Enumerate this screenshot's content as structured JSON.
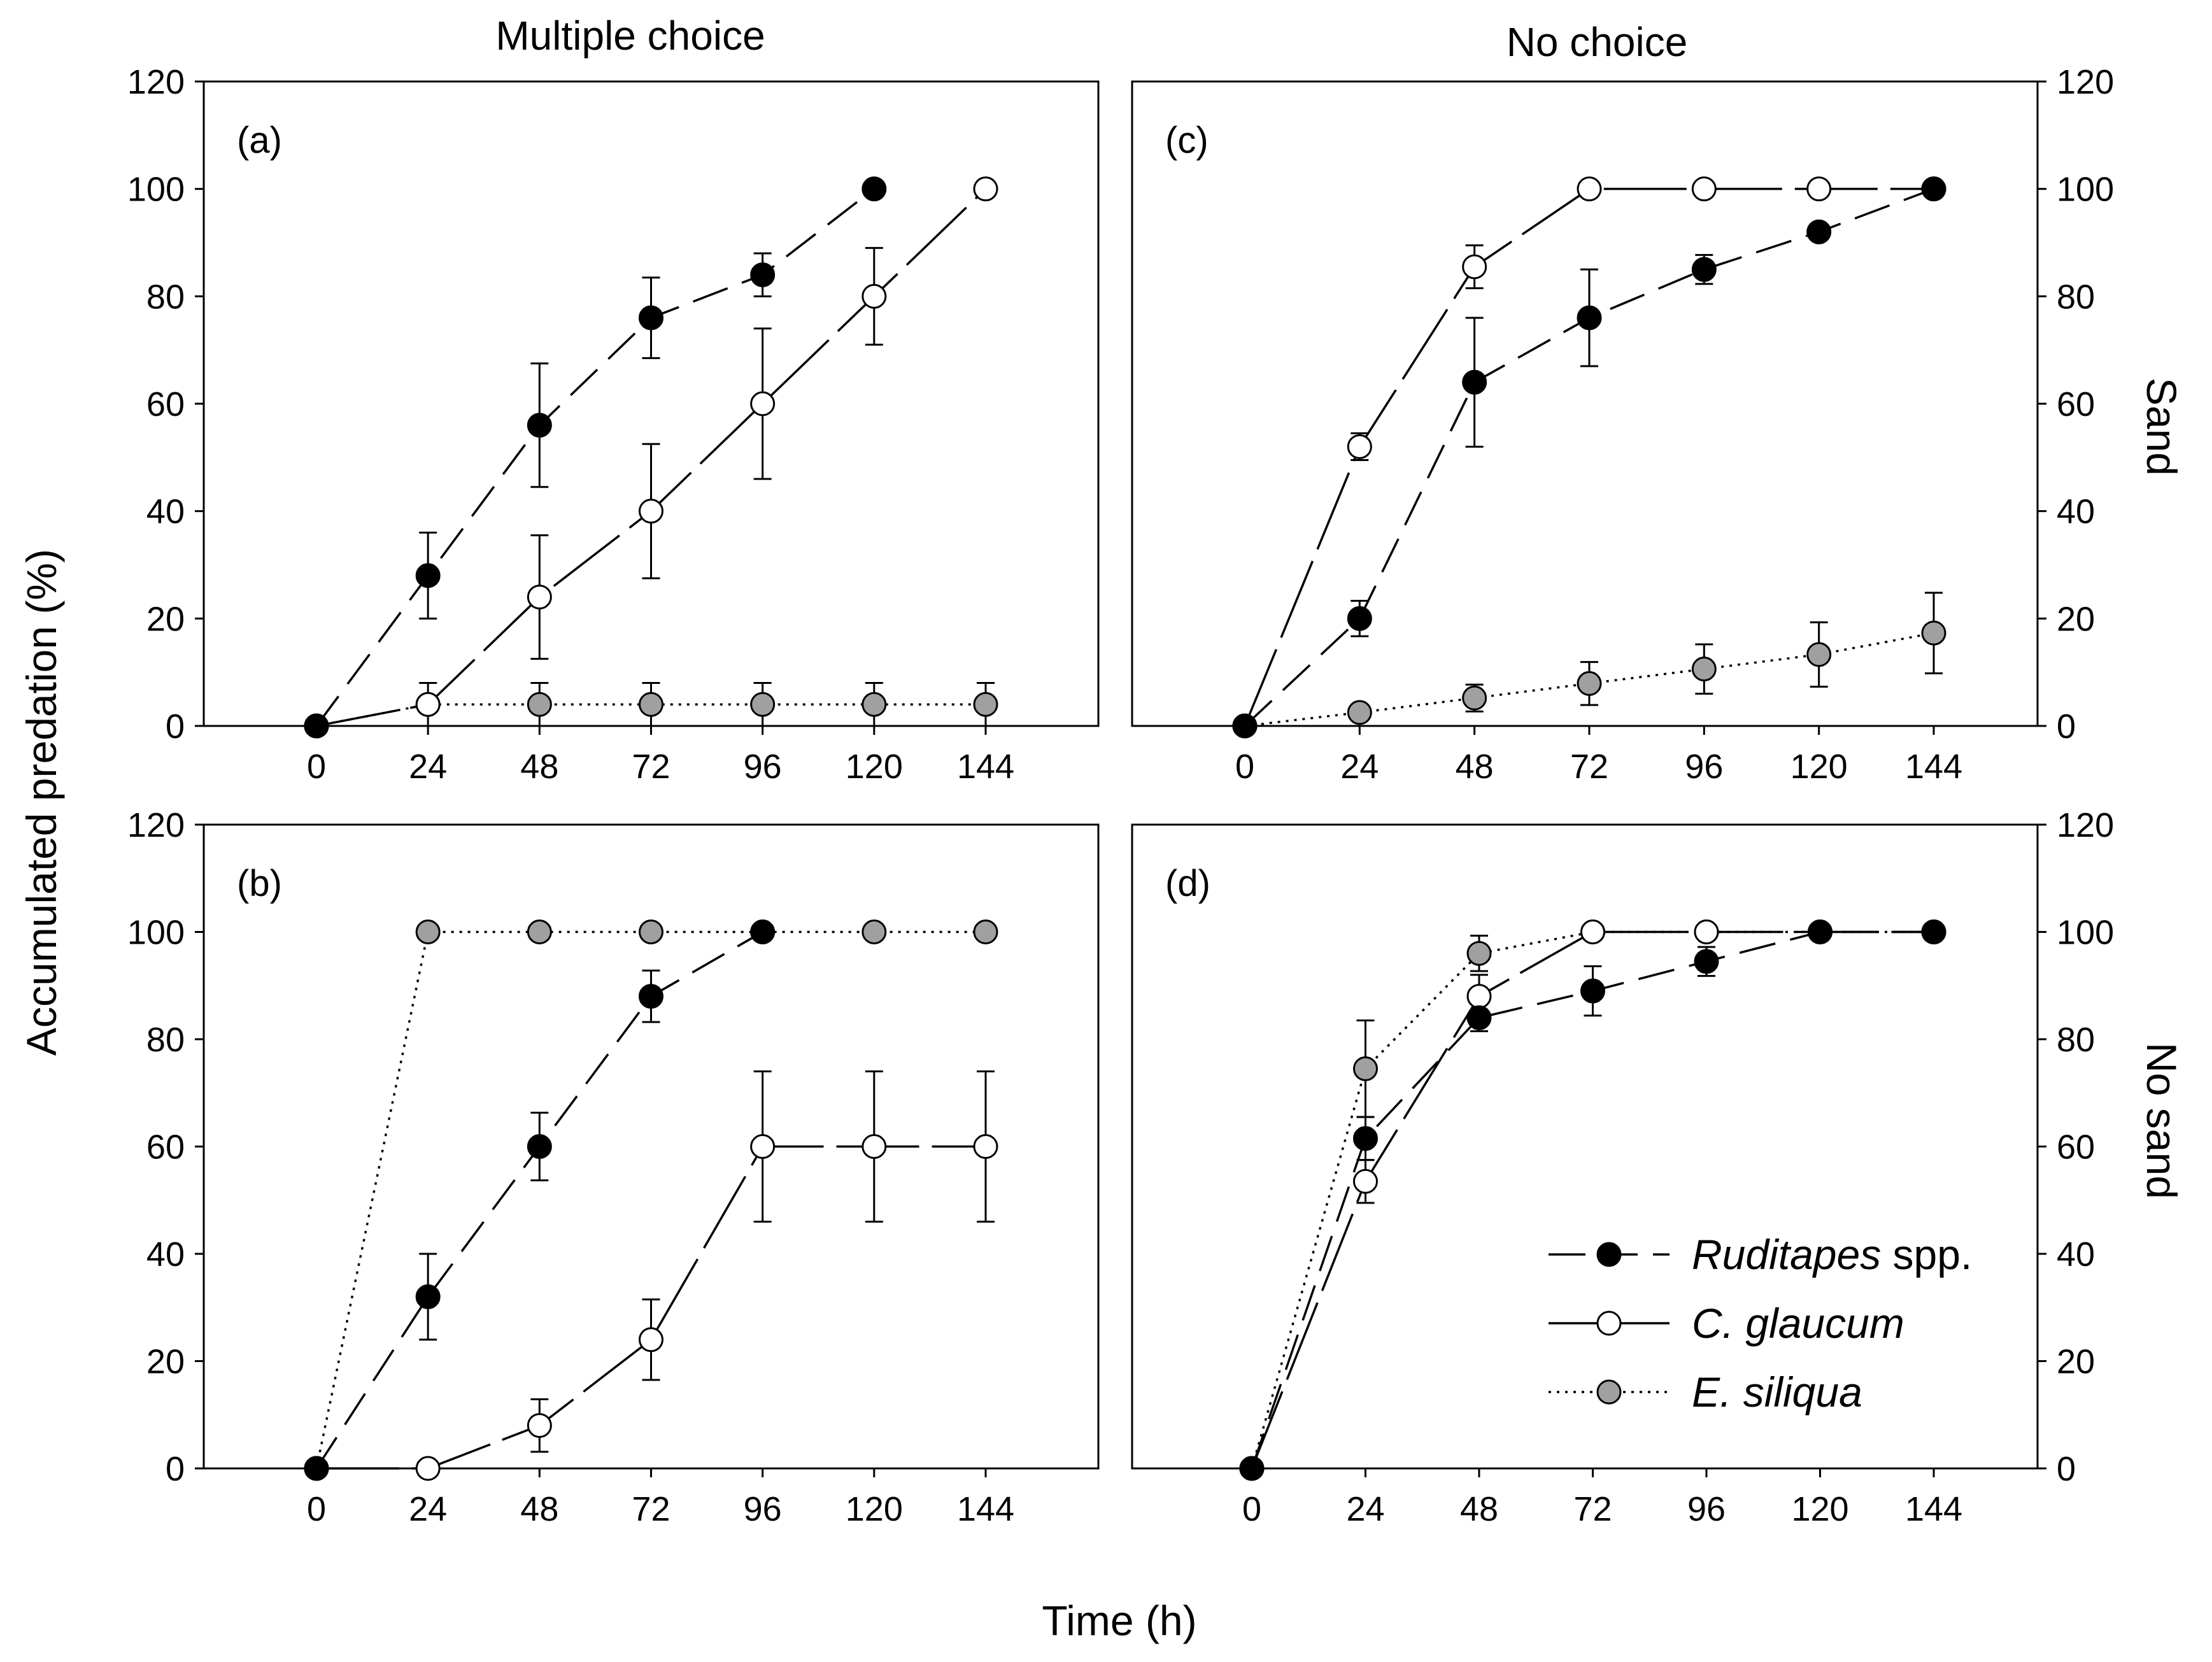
{
  "column_titles": [
    "Multiple choice",
    "No choice"
  ],
  "row_labels": [
    "Sand",
    "No sand"
  ],
  "shared_xlabel": "Time (h)",
  "shared_ylabel": "Accumulated predation (%)",
  "legend": [
    {
      "label_italic": "Ruditapes",
      "label_rest": " spp.",
      "marker": "filled-black",
      "line": "dashed"
    },
    {
      "label_italic": "C. glaucum",
      "label_rest": "",
      "marker": "open-white",
      "line": "solid"
    },
    {
      "label_italic": "E. siliqua",
      "label_rest": "",
      "marker": "filled-gray",
      "line": "dotted"
    }
  ],
  "colors": {
    "ruditapes": "#000000",
    "glaucum": "#ffffff",
    "siliqua": "#a0a0a0",
    "stroke": "#000000"
  },
  "chart_data": [
    {
      "type": "line",
      "panel": "(a)",
      "x": [
        0,
        24,
        48,
        72,
        96,
        120,
        144
      ],
      "xlim": [
        -24,
        168
      ],
      "ylim": [
        0,
        120
      ],
      "xticks": [
        0,
        24,
        48,
        72,
        96,
        120,
        144
      ],
      "yticks": [
        0,
        20,
        40,
        60,
        80,
        100,
        120
      ],
      "series": [
        {
          "name": "Ruditapes spp.",
          "style": "ruditapes",
          "x": [
            0,
            24,
            48,
            72,
            96,
            120
          ],
          "values": [
            0,
            28,
            56,
            76,
            84,
            100
          ],
          "errors": [
            0,
            8,
            11.5,
            7.5,
            4,
            0
          ]
        },
        {
          "name": "C. glaucum",
          "style": "glaucum",
          "x": [
            0,
            24,
            48,
            72,
            96,
            120,
            144
          ],
          "values": [
            0,
            4,
            24,
            40,
            60,
            80,
            100
          ],
          "errors": [
            0,
            0,
            11.5,
            12.5,
            14,
            9,
            0
          ]
        },
        {
          "name": "E. siliqua",
          "style": "siliqua",
          "x": [
            0,
            24,
            48,
            72,
            96,
            120,
            144
          ],
          "values": [
            0,
            4,
            4,
            4,
            4,
            4,
            4
          ],
          "errors": [
            0,
            4,
            4,
            4,
            4,
            4,
            4
          ]
        }
      ]
    },
    {
      "type": "line",
      "panel": "(b)",
      "x": [
        0,
        24,
        48,
        72,
        96,
        120,
        144
      ],
      "xlim": [
        -24,
        168
      ],
      "ylim": [
        0,
        120
      ],
      "xticks": [
        0,
        24,
        48,
        72,
        96,
        120,
        144
      ],
      "yticks": [
        0,
        20,
        40,
        60,
        80,
        100,
        120
      ],
      "series": [
        {
          "name": "Ruditapes spp.",
          "style": "ruditapes",
          "x": [
            0,
            24,
            48,
            72,
            96
          ],
          "values": [
            0,
            32,
            60,
            88,
            100
          ],
          "errors": [
            0,
            8,
            6.3,
            4.8,
            0
          ]
        },
        {
          "name": "C. glaucum",
          "style": "glaucum",
          "x": [
            0,
            24,
            48,
            72,
            96,
            120,
            144
          ],
          "values": [
            0,
            0,
            8,
            24,
            60,
            60,
            60
          ],
          "errors": [
            0,
            0,
            4.9,
            7.5,
            14,
            14,
            14
          ]
        },
        {
          "name": "E. siliqua",
          "style": "siliqua",
          "x": [
            0,
            24,
            48,
            72,
            96,
            120,
            144
          ],
          "values": [
            0,
            100,
            100,
            100,
            100,
            100,
            100
          ],
          "errors": [
            0,
            0,
            0,
            0,
            0,
            0,
            0
          ]
        }
      ]
    },
    {
      "type": "line",
      "panel": "(c)",
      "x": [
        0,
        24,
        48,
        72,
        96,
        120,
        144
      ],
      "xlim": [
        -24,
        168
      ],
      "ylim": [
        0,
        120
      ],
      "xticks": [
        0,
        24,
        48,
        72,
        96,
        120,
        144
      ],
      "yticks": [
        0,
        20,
        40,
        60,
        80,
        100,
        120
      ],
      "series": [
        {
          "name": "Ruditapes spp.",
          "style": "ruditapes",
          "x": [
            0,
            24,
            48,
            72,
            96,
            120,
            144
          ],
          "values": [
            0,
            20,
            64,
            76,
            85,
            92,
            100
          ],
          "errors": [
            0,
            3.3,
            12,
            9,
            2.7,
            0,
            0
          ]
        },
        {
          "name": "C. glaucum",
          "style": "glaucum",
          "x": [
            0,
            24,
            48,
            72,
            96,
            120,
            144
          ],
          "values": [
            0,
            52,
            85.5,
            100,
            100,
            100,
            100
          ],
          "errors": [
            0,
            2.5,
            4,
            0,
            0,
            0,
            0
          ]
        },
        {
          "name": "E. siliqua",
          "style": "siliqua",
          "x": [
            0,
            24,
            48,
            72,
            96,
            120,
            144
          ],
          "values": [
            0,
            2.5,
            5.2,
            7.9,
            10.6,
            13.3,
            17.3
          ],
          "errors": [
            0,
            0,
            2.5,
            4,
            4.6,
            6,
            7.5
          ]
        }
      ]
    },
    {
      "type": "line",
      "panel": "(d)",
      "x": [
        0,
        24,
        48,
        72,
        96,
        120,
        144
      ],
      "xlim": [
        -24,
        168
      ],
      "ylim": [
        0,
        120
      ],
      "xticks": [
        0,
        24,
        48,
        72,
        96,
        120,
        144
      ],
      "yticks": [
        0,
        20,
        40,
        60,
        80,
        100,
        120
      ],
      "series": [
        {
          "name": "Ruditapes spp.",
          "style": "ruditapes",
          "x": [
            0,
            24,
            48,
            72,
            96,
            120,
            144
          ],
          "values": [
            0,
            61.5,
            84,
            89,
            94.5,
            100,
            100
          ],
          "errors": [
            0,
            4,
            2.5,
            4.6,
            2.7,
            0,
            0
          ]
        },
        {
          "name": "C. glaucum",
          "style": "glaucum",
          "x": [
            0,
            24,
            48,
            72,
            96,
            120,
            144
          ],
          "values": [
            0,
            53.5,
            88,
            100,
            100,
            100,
            100
          ],
          "errors": [
            0,
            4,
            4,
            0,
            0,
            0,
            0
          ]
        },
        {
          "name": "E. siliqua",
          "style": "siliqua",
          "x": [
            0,
            24,
            48,
            72,
            96,
            120,
            144
          ],
          "values": [
            0,
            74.5,
            96,
            100,
            100,
            100,
            100
          ],
          "errors": [
            0,
            9,
            3.3,
            0,
            0,
            0,
            0
          ]
        }
      ]
    }
  ]
}
